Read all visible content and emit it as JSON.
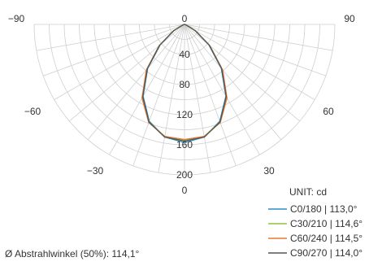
{
  "chart_data": {
    "type": "polar-photometric",
    "unit_label": "UNIT: cd",
    "radial_ticks": [
      40,
      80,
      120,
      160,
      200
    ],
    "radial_max": 200,
    "angle_labels": [
      "-90",
      "-60",
      "-30",
      "0",
      "30",
      "60",
      "90"
    ],
    "bottom_label": "0",
    "footnote": "Ø Abstrahlwinkel (50%): 114,1°",
    "series": [
      {
        "name": "C0/180 | 113,0°",
        "color": "#2a8fc7",
        "angles": [
          -90,
          -80,
          -70,
          -60,
          -50,
          -40,
          -30,
          -20,
          -10,
          0,
          10,
          20,
          30,
          40,
          50,
          60,
          70,
          80,
          90
        ],
        "values": [
          0,
          0,
          2,
          16,
          42,
          76,
          110,
          137,
          152,
          157,
          152,
          137,
          110,
          76,
          42,
          16,
          2,
          0,
          0
        ]
      },
      {
        "name": "C30/210 | 114,6°",
        "color": "#8cc63f",
        "angles": [
          -90,
          -80,
          -70,
          -60,
          -50,
          -40,
          -30,
          -20,
          -10,
          0,
          10,
          20,
          30,
          40,
          50,
          60,
          70,
          80,
          90
        ],
        "values": [
          0,
          0,
          3,
          17,
          44,
          78,
          112,
          138,
          151,
          154,
          151,
          138,
          112,
          78,
          44,
          17,
          3,
          0,
          0
        ]
      },
      {
        "name": "C60/240 | 114,5°",
        "color": "#e8772e",
        "angles": [
          -90,
          -80,
          -70,
          -60,
          -50,
          -40,
          -30,
          -20,
          -10,
          0,
          10,
          20,
          30,
          40,
          50,
          60,
          70,
          80,
          90
        ],
        "values": [
          0,
          0,
          3,
          17,
          44,
          79,
          113,
          139,
          151,
          153,
          151,
          139,
          113,
          79,
          44,
          17,
          3,
          0,
          0
        ]
      },
      {
        "name": "C90/270 | 114,0°",
        "color": "#555555",
        "angles": [
          -90,
          -80,
          -70,
          -60,
          -50,
          -40,
          -30,
          -20,
          -10,
          0,
          10,
          20,
          30,
          40,
          50,
          60,
          70,
          80,
          90
        ],
        "values": [
          0,
          0,
          2,
          17,
          43,
          77,
          111,
          138,
          152,
          155,
          152,
          138,
          111,
          77,
          43,
          17,
          2,
          0,
          0
        ]
      }
    ]
  }
}
